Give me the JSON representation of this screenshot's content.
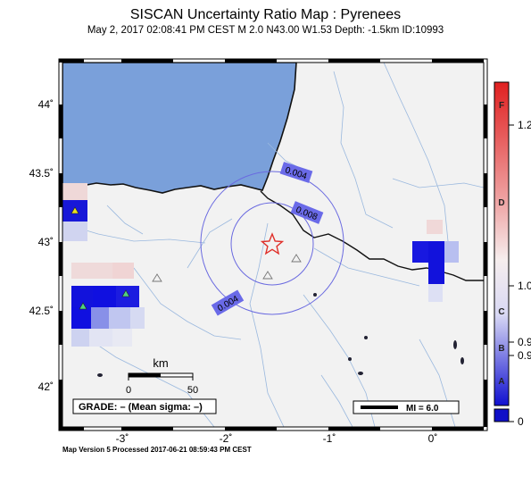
{
  "map": {
    "title": "SISCAN Uncertainty Ratio Map : Pyrenees",
    "subtitle": "May  2, 2017 02:08:41 PM CEST   M 2.0   N43.00 W1.53   Depth: -1.5km   ID:10993",
    "lat_ticks": [
      "44˚",
      "43.5˚",
      "43˚",
      "42.5˚",
      "42˚"
    ],
    "lon_ticks": [
      "-3˚",
      "-2˚",
      "-1˚",
      "0˚"
    ],
    "contours": [
      "0.004",
      "0.008",
      "0.004"
    ],
    "scale": {
      "unit": "km",
      "start": "0",
      "end": "50"
    },
    "grade_box": "GRADE: – (Mean sigma: –)",
    "mi_box": "MI = 6.0",
    "footer": "Map Version 5 Processed 2017-06-21 08:59:43 PM CEST"
  },
  "colorbar": {
    "grades": [
      "F",
      "D",
      "C",
      "B",
      "A"
    ],
    "values": [
      "1.2",
      "1.0",
      "0.9",
      "0.9",
      "0"
    ]
  },
  "colors": {
    "sea": "#7aa0da",
    "land": "#f2f2f2",
    "epicenter": "#e0302a",
    "contour": "#6a6ae0",
    "high_ratio": "#1010e0",
    "low_ratio": "#c8cef0"
  }
}
